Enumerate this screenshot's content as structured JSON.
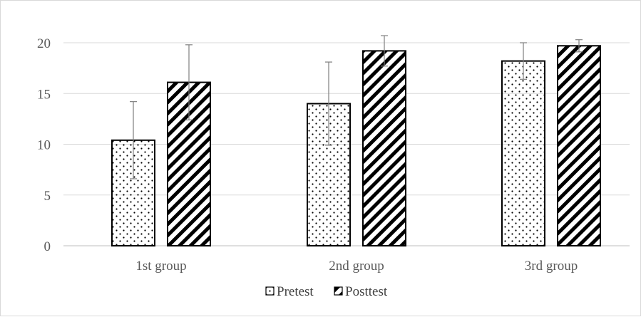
{
  "chart_data": {
    "type": "bar",
    "title": "",
    "xlabel": "",
    "ylabel": "",
    "categories": [
      "1st group",
      "2nd group",
      "3rd group"
    ],
    "series": [
      {
        "name": "Pretest",
        "pattern": "dots",
        "values": [
          10.4,
          14.0,
          18.2
        ],
        "error": [
          3.8,
          4.1,
          1.8
        ]
      },
      {
        "name": "Posttest",
        "pattern": "diagonal-stripes",
        "values": [
          16.1,
          19.2,
          19.7
        ],
        "error": [
          3.7,
          1.5,
          0.6
        ]
      }
    ],
    "ylim": [
      0,
      20
    ],
    "yticks": [
      0,
      5,
      10,
      15,
      20
    ],
    "grid": true,
    "legend_position": "bottom",
    "colors": {
      "bar_stroke": "#000000",
      "bar_fill": "#ffffff",
      "pattern": "#000000",
      "grid": "#d9d9d9",
      "axis": "#bfbfbf",
      "tick_text": "#595959",
      "error_bar": "#7f7f7f"
    }
  }
}
